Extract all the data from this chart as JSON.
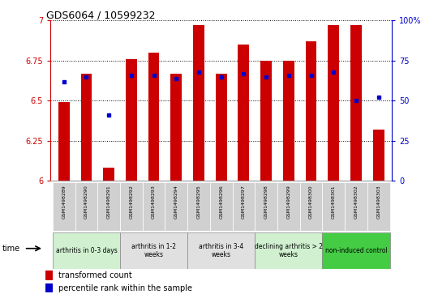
{
  "title": "GDS6064 / 10599232",
  "samples": [
    "GSM1498289",
    "GSM1498290",
    "GSM1498291",
    "GSM1498292",
    "GSM1498293",
    "GSM1498294",
    "GSM1498295",
    "GSM1498296",
    "GSM1498297",
    "GSM1498298",
    "GSM1498299",
    "GSM1498300",
    "GSM1498301",
    "GSM1498302",
    "GSM1498303"
  ],
  "red_values": [
    6.49,
    6.67,
    6.08,
    6.76,
    6.8,
    6.67,
    6.97,
    6.67,
    6.85,
    6.75,
    6.75,
    6.87,
    6.97,
    6.97,
    6.32
  ],
  "blue_values": [
    6.62,
    6.65,
    6.41,
    6.66,
    6.66,
    6.64,
    6.68,
    6.65,
    6.67,
    6.65,
    6.66,
    6.66,
    6.68,
    6.5,
    6.52
  ],
  "ymin": 6.0,
  "ymax": 7.0,
  "yticks_left": [
    6.0,
    6.25,
    6.5,
    6.75,
    7.0
  ],
  "ytick_labels_left": [
    "6",
    "6.25",
    "6.5",
    "6.75",
    "7"
  ],
  "right_yticks_pct": [
    0,
    25,
    50,
    75,
    100
  ],
  "groups": [
    {
      "label": "arthritis in 0-3 days",
      "start": 0,
      "end": 3,
      "color": "#d0f0d0"
    },
    {
      "label": "arthritis in 1-2\nweeks",
      "start": 3,
      "end": 6,
      "color": "#e0e0e0"
    },
    {
      "label": "arthritis in 3-4\nweeks",
      "start": 6,
      "end": 9,
      "color": "#e0e0e0"
    },
    {
      "label": "declining arthritis > 2\nweeks",
      "start": 9,
      "end": 12,
      "color": "#d0f0d0"
    },
    {
      "label": "non-induced control",
      "start": 12,
      "end": 15,
      "color": "#44cc44"
    }
  ],
  "bar_color": "#cc0000",
  "dot_color": "#0000cc",
  "bg_color": "#ffffff",
  "left_axis_color": "#cc0000",
  "right_axis_color": "#0000cc",
  "bar_width": 0.5,
  "tick_area_color": "#d0d0d0"
}
